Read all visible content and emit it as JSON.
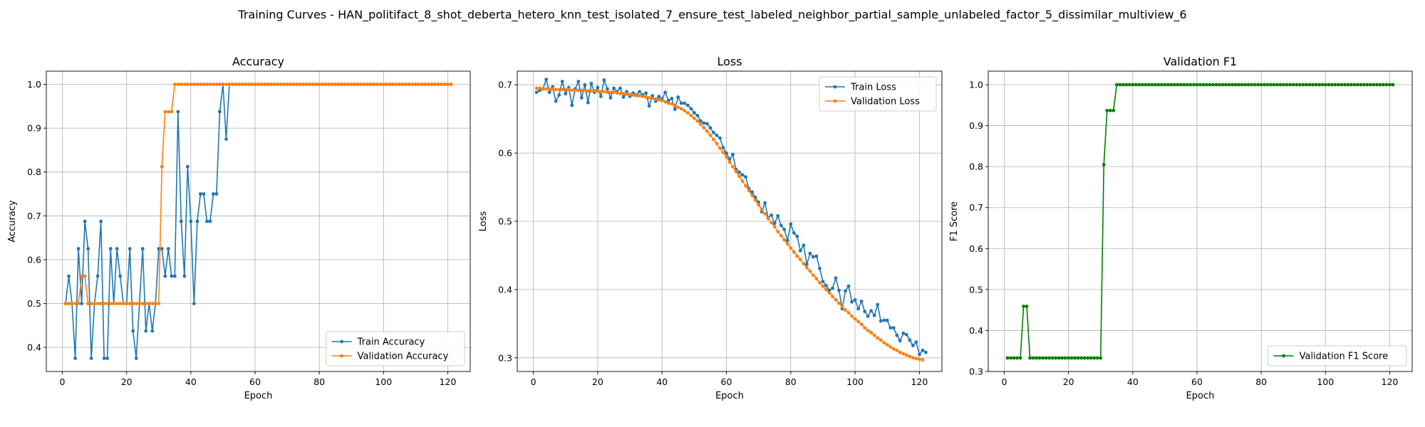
{
  "suptitle": "Training Curves - HAN_politifact_8_shot_deberta_hetero_knn_test_isolated_7_ensure_test_labeled_neighbor_partial_sample_unlabeled_factor_5_dissimilar_multiview_6",
  "colors": {
    "train": "#1f77b4",
    "validation": "#ff7f0e",
    "f1": "#008000",
    "grid": "#b0b0b0"
  },
  "chart_data": [
    {
      "type": "line",
      "title": "Accuracy",
      "xlabel": "Epoch",
      "ylabel": "Accuracy",
      "xlim": [
        -5,
        127
      ],
      "ylim": [
        0.345,
        1.03
      ],
      "xticks": [
        0,
        20,
        40,
        60,
        80,
        100,
        120
      ],
      "yticks": [
        0.4,
        0.5,
        0.6,
        0.7,
        0.8,
        0.9,
        1.0
      ],
      "ytick_labels": [
        "0.4",
        "0.5",
        "0.6",
        "0.7",
        "0.8",
        "0.9",
        "1.0"
      ],
      "grid": true,
      "legend_position": "lower-right",
      "series": [
        {
          "name": "Train Accuracy",
          "color": "#1f77b4",
          "values": [
            0.5,
            0.5625,
            0.5,
            0.375,
            0.625,
            0.5,
            0.6875,
            0.625,
            0.375,
            0.5,
            0.5625,
            0.6875,
            0.375,
            0.375,
            0.625,
            0.5,
            0.625,
            0.5625,
            0.5,
            0.5,
            0.625,
            0.4375,
            0.375,
            0.5,
            0.625,
            0.4375,
            0.5,
            0.4375,
            0.5,
            0.625,
            0.625,
            0.5625,
            0.625,
            0.5625,
            0.5625,
            0.9375,
            0.6875,
            0.5625,
            0.8125,
            0.6875,
            0.5,
            0.6875,
            0.75,
            0.75,
            0.6875,
            0.6875,
            0.75,
            0.75,
            0.9375,
            1.0,
            0.875,
            1.0,
            1.0,
            1.0,
            1.0,
            1.0,
            1.0,
            1.0,
            1.0,
            1.0,
            1.0,
            1.0,
            1.0,
            1.0,
            1.0,
            1.0,
            1.0,
            1.0,
            1.0,
            1.0,
            1.0,
            1.0,
            1.0,
            1.0,
            1.0,
            1.0,
            1.0,
            1.0,
            1.0,
            1.0,
            1.0,
            1.0,
            1.0,
            1.0,
            1.0,
            1.0,
            1.0,
            1.0,
            1.0,
            1.0,
            1.0,
            1.0,
            1.0,
            1.0,
            1.0,
            1.0,
            1.0,
            1.0,
            1.0,
            1.0,
            1.0,
            1.0,
            1.0,
            1.0,
            1.0,
            1.0,
            1.0,
            1.0,
            1.0,
            1.0,
            1.0,
            1.0,
            1.0,
            1.0,
            1.0,
            1.0,
            1.0,
            1.0,
            1.0,
            1.0,
            1.0
          ]
        },
        {
          "name": "Validation Accuracy",
          "color": "#ff7f0e",
          "values": [
            0.5,
            0.5,
            0.5,
            0.5,
            0.5,
            0.5625,
            0.5625,
            0.5,
            0.5,
            0.5,
            0.5,
            0.5,
            0.5,
            0.5,
            0.5,
            0.5,
            0.5,
            0.5,
            0.5,
            0.5,
            0.5,
            0.5,
            0.5,
            0.5,
            0.5,
            0.5,
            0.5,
            0.5,
            0.5,
            0.5,
            0.8125,
            0.9375,
            0.9375,
            0.9375,
            1.0,
            1.0,
            1.0,
            1.0,
            1.0,
            1.0,
            1.0,
            1.0,
            1.0,
            1.0,
            1.0,
            1.0,
            1.0,
            1.0,
            1.0,
            1.0,
            1.0,
            1.0,
            1.0,
            1.0,
            1.0,
            1.0,
            1.0,
            1.0,
            1.0,
            1.0,
            1.0,
            1.0,
            1.0,
            1.0,
            1.0,
            1.0,
            1.0,
            1.0,
            1.0,
            1.0,
            1.0,
            1.0,
            1.0,
            1.0,
            1.0,
            1.0,
            1.0,
            1.0,
            1.0,
            1.0,
            1.0,
            1.0,
            1.0,
            1.0,
            1.0,
            1.0,
            1.0,
            1.0,
            1.0,
            1.0,
            1.0,
            1.0,
            1.0,
            1.0,
            1.0,
            1.0,
            1.0,
            1.0,
            1.0,
            1.0,
            1.0,
            1.0,
            1.0,
            1.0,
            1.0,
            1.0,
            1.0,
            1.0,
            1.0,
            1.0,
            1.0,
            1.0,
            1.0,
            1.0,
            1.0,
            1.0,
            1.0,
            1.0,
            1.0,
            1.0,
            1.0
          ]
        }
      ]
    },
    {
      "type": "line",
      "title": "Loss",
      "xlabel": "Epoch",
      "ylabel": "Loss",
      "xlim": [
        -5,
        127
      ],
      "ylim": [
        0.28,
        0.72
      ],
      "xticks": [
        0,
        20,
        40,
        60,
        80,
        100,
        120
      ],
      "yticks": [
        0.3,
        0.4,
        0.5,
        0.6,
        0.7
      ],
      "ytick_labels": [
        "0.3",
        "0.4",
        "0.5",
        "0.6",
        "0.7"
      ],
      "grid": true,
      "legend_position": "upper-right",
      "series": [
        {
          "name": "Train Loss",
          "color": "#1f77b4",
          "values": [
            0.689,
            0.692,
            0.694,
            0.708,
            0.689,
            0.697,
            0.676,
            0.685,
            0.705,
            0.687,
            0.696,
            0.67,
            0.694,
            0.705,
            0.681,
            0.7,
            0.674,
            0.702,
            0.689,
            0.696,
            0.683,
            0.707,
            0.694,
            0.681,
            0.695,
            0.69,
            0.695,
            0.682,
            0.69,
            0.683,
            0.688,
            0.685,
            0.69,
            0.685,
            0.688,
            0.669,
            0.684,
            0.676,
            0.683,
            0.679,
            0.689,
            0.677,
            0.68,
            0.664,
            0.682,
            0.673,
            0.673,
            0.67,
            0.665,
            0.659,
            0.655,
            0.647,
            0.644,
            0.643,
            0.637,
            0.63,
            0.626,
            0.622,
            0.608,
            0.6,
            0.591,
            0.598,
            0.576,
            0.572,
            0.568,
            0.565,
            0.548,
            0.543,
            0.535,
            0.528,
            0.514,
            0.527,
            0.505,
            0.509,
            0.497,
            0.508,
            0.494,
            0.488,
            0.472,
            0.496,
            0.483,
            0.478,
            0.457,
            0.465,
            0.437,
            0.453,
            0.448,
            0.449,
            0.431,
            0.412,
            0.406,
            0.399,
            0.402,
            0.417,
            0.399,
            0.372,
            0.398,
            0.405,
            0.382,
            0.385,
            0.372,
            0.383,
            0.368,
            0.361,
            0.369,
            0.362,
            0.378,
            0.354,
            0.355,
            0.355,
            0.344,
            0.344,
            0.333,
            0.325,
            0.336,
            0.334,
            0.326,
            0.318,
            0.323,
            0.305,
            0.311,
            0.308
          ]
        },
        {
          "name": "Validation Loss",
          "color": "#ff7f0e",
          "values": [
            0.695,
            0.695,
            0.694,
            0.694,
            0.694,
            0.694,
            0.693,
            0.693,
            0.693,
            0.693,
            0.693,
            0.692,
            0.692,
            0.692,
            0.692,
            0.692,
            0.691,
            0.691,
            0.691,
            0.691,
            0.69,
            0.69,
            0.689,
            0.689,
            0.689,
            0.688,
            0.687,
            0.687,
            0.686,
            0.686,
            0.685,
            0.684,
            0.684,
            0.683,
            0.682,
            0.681,
            0.68,
            0.679,
            0.678,
            0.677,
            0.675,
            0.673,
            0.672,
            0.67,
            0.667,
            0.665,
            0.662,
            0.659,
            0.655,
            0.651,
            0.647,
            0.642,
            0.637,
            0.632,
            0.626,
            0.62,
            0.614,
            0.607,
            0.601,
            0.594,
            0.587,
            0.58,
            0.573,
            0.566,
            0.559,
            0.552,
            0.545,
            0.538,
            0.531,
            0.524,
            0.517,
            0.511,
            0.504,
            0.498,
            0.492,
            0.485,
            0.479,
            0.473,
            0.467,
            0.461,
            0.455,
            0.449,
            0.444,
            0.438,
            0.432,
            0.427,
            0.421,
            0.416,
            0.41,
            0.405,
            0.4,
            0.395,
            0.39,
            0.385,
            0.38,
            0.375,
            0.37,
            0.366,
            0.361,
            0.357,
            0.353,
            0.349,
            0.344,
            0.34,
            0.337,
            0.333,
            0.329,
            0.326,
            0.322,
            0.319,
            0.316,
            0.313,
            0.311,
            0.308,
            0.306,
            0.304,
            0.302,
            0.3,
            0.299,
            0.298,
            0.297
          ]
        }
      ]
    },
    {
      "type": "line",
      "title": "Validation F1",
      "xlabel": "Epoch",
      "ylabel": "F1 Score",
      "xlim": [
        -5,
        127
      ],
      "ylim": [
        0.3,
        1.033
      ],
      "xticks": [
        0,
        20,
        40,
        60,
        80,
        100,
        120
      ],
      "yticks": [
        0.3,
        0.4,
        0.5,
        0.6,
        0.7,
        0.8,
        0.9,
        1.0
      ],
      "ytick_labels": [
        "0.3",
        "0.4",
        "0.5",
        "0.6",
        "0.7",
        "0.8",
        "0.9",
        "1.0"
      ],
      "grid": true,
      "legend_position": "lower-right",
      "series": [
        {
          "name": "Validation F1 Score",
          "color": "#008000",
          "values": [
            0.333,
            0.333,
            0.333,
            0.333,
            0.333,
            0.459,
            0.459,
            0.333,
            0.333,
            0.333,
            0.333,
            0.333,
            0.333,
            0.333,
            0.333,
            0.333,
            0.333,
            0.333,
            0.333,
            0.333,
            0.333,
            0.333,
            0.333,
            0.333,
            0.333,
            0.333,
            0.333,
            0.333,
            0.333,
            0.333,
            0.805,
            0.937,
            0.937,
            0.937,
            1.0,
            1.0,
            1.0,
            1.0,
            1.0,
            1.0,
            1.0,
            1.0,
            1.0,
            1.0,
            1.0,
            1.0,
            1.0,
            1.0,
            1.0,
            1.0,
            1.0,
            1.0,
            1.0,
            1.0,
            1.0,
            1.0,
            1.0,
            1.0,
            1.0,
            1.0,
            1.0,
            1.0,
            1.0,
            1.0,
            1.0,
            1.0,
            1.0,
            1.0,
            1.0,
            1.0,
            1.0,
            1.0,
            1.0,
            1.0,
            1.0,
            1.0,
            1.0,
            1.0,
            1.0,
            1.0,
            1.0,
            1.0,
            1.0,
            1.0,
            1.0,
            1.0,
            1.0,
            1.0,
            1.0,
            1.0,
            1.0,
            1.0,
            1.0,
            1.0,
            1.0,
            1.0,
            1.0,
            1.0,
            1.0,
            1.0,
            1.0,
            1.0,
            1.0,
            1.0,
            1.0,
            1.0,
            1.0,
            1.0,
            1.0,
            1.0,
            1.0,
            1.0,
            1.0,
            1.0,
            1.0,
            1.0,
            1.0,
            1.0,
            1.0,
            1.0,
            1.0
          ]
        }
      ]
    }
  ]
}
